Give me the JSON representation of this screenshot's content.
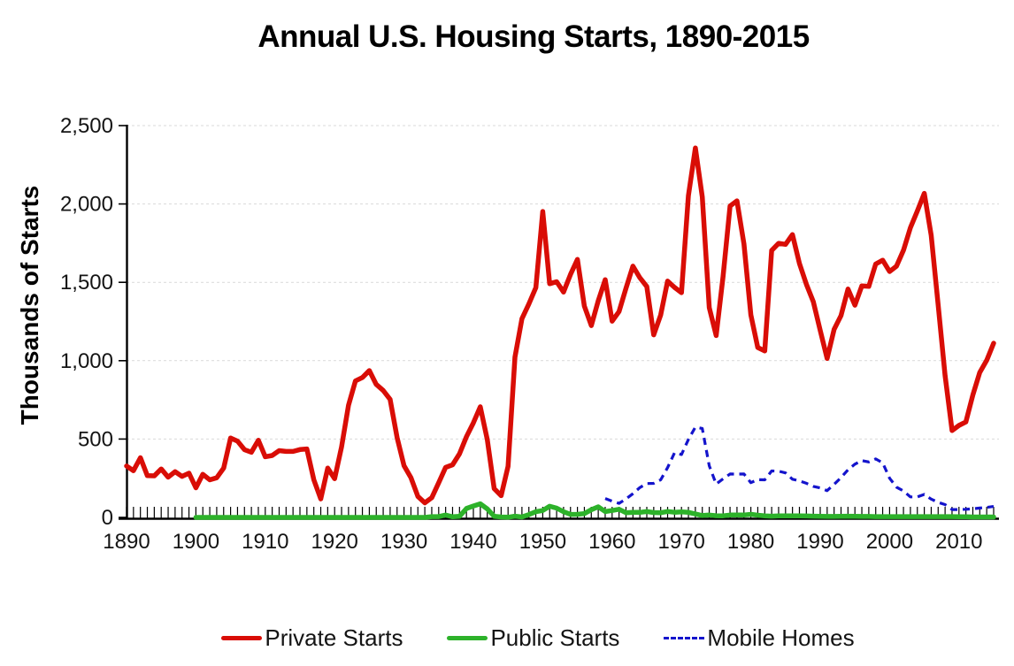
{
  "title": "Annual U.S. Housing Starts, 1890-2015",
  "y_axis": {
    "label": "Thousands of Starts",
    "tick_labels": [
      "0",
      "500",
      "1,000",
      "1,500",
      "2,000",
      "2,500"
    ],
    "tick_values": [
      0,
      500,
      1000,
      1500,
      2000,
      2500
    ]
  },
  "x_axis": {
    "tick_labels": [
      "1890",
      "1900",
      "1910",
      "1920",
      "1930",
      "1940",
      "1950",
      "1960",
      "1970",
      "1980",
      "1990",
      "2000",
      "2010"
    ],
    "tick_values": [
      1890,
      1900,
      1910,
      1920,
      1930,
      1940,
      1950,
      1960,
      1970,
      1980,
      1990,
      2000,
      2010
    ]
  },
  "colors": {
    "private": "#d90d06",
    "public": "#2db22a",
    "mobile": "#1414cc",
    "gridline": "#d9d9d9",
    "axis": "#000000"
  },
  "chart_data": {
    "type": "line",
    "title": "Annual U.S. Housing Starts, 1890-2015",
    "xlabel": "",
    "ylabel": "Thousands of Starts",
    "x_start": 1890,
    "x_end": 2015,
    "ylim": [
      0,
      2500
    ],
    "grid": "horizontal-dashed",
    "legend_position": "bottom",
    "series": [
      {
        "name": "Private Starts",
        "color": "#d90d06",
        "dashed": false,
        "first_year": 1890,
        "values": [
          328,
          298,
          381,
          267,
          265,
          309,
          257,
          292,
          262,
          282,
          189,
          275,
          240,
          253,
          315,
          507,
          487,
          432,
          416,
          492,
          387,
          395,
          426,
          421,
          421,
          433,
          437,
          240,
          118,
          315,
          247,
          449,
          716,
          871,
          893,
          937,
          849,
          810,
          753,
          509,
          330,
          254,
          134,
          93,
          126,
          221,
          319,
          336,
          406,
          515,
          603,
          706,
          497,
          184,
          139,
          326,
          1023,
          1268,
          1362,
          1466,
          1952,
          1491,
          1504,
          1438,
          1551,
          1646,
          1349,
          1224,
          1382,
          1517,
          1252,
          1313,
          1463,
          1603,
          1529,
          1473,
          1165,
          1292,
          1508,
          1467,
          1434,
          2052,
          2357,
          2045,
          1338,
          1160,
          1538,
          1987,
          2020,
          1745,
          1292,
          1084,
          1062,
          1703,
          1749,
          1742,
          1805,
          1620,
          1488,
          1376,
          1193,
          1014,
          1200,
          1288,
          1457,
          1354,
          1477,
          1474,
          1617,
          1641,
          1569,
          1603,
          1705,
          1848,
          1956,
          2068,
          1801,
          1355,
          906,
          554,
          587,
          609,
          781,
          925,
          1003,
          1112
        ]
      },
      {
        "name": "Public Starts",
        "color": "#2db22a",
        "dashed": false,
        "first_year": 1900,
        "values": [
          null,
          null,
          null,
          null,
          null,
          null,
          null,
          null,
          null,
          null,
          0,
          0,
          0,
          0,
          0,
          0,
          0,
          0,
          0,
          0,
          0,
          0,
          0,
          0,
          0,
          0,
          0,
          0,
          0,
          0,
          0,
          0,
          0,
          0,
          0,
          0,
          0,
          0,
          0,
          0,
          0,
          0,
          0,
          0,
          5,
          5,
          15,
          4,
          7,
          57,
          73,
          87,
          54,
          7,
          3,
          1,
          8,
          3,
          18,
          36,
          44,
          71,
          59,
          36,
          19,
          20,
          24,
          49,
          68,
          37,
          44,
          52,
          30,
          32,
          32,
          37,
          31,
          30,
          38,
          33,
          35,
          32,
          22,
          12,
          15,
          11,
          10,
          15,
          16,
          15,
          20,
          14,
          10,
          8,
          10,
          10,
          10,
          10,
          9,
          8,
          7,
          6,
          6,
          7,
          8,
          7,
          6,
          6,
          5,
          5,
          5,
          5,
          5,
          5,
          5,
          5,
          5,
          5,
          5,
          5,
          4,
          4,
          3,
          3,
          3,
          3
        ]
      },
      {
        "name": "Mobile Homes",
        "color": "#1414cc",
        "dashed": true,
        "first_year": 1959,
        "values": [
          null,
          null,
          null,
          null,
          null,
          null,
          null,
          null,
          null,
          null,
          null,
          null,
          null,
          null,
          null,
          null,
          null,
          null,
          null,
          null,
          null,
          null,
          null,
          null,
          null,
          null,
          null,
          null,
          null,
          null,
          null,
          null,
          null,
          null,
          null,
          null,
          null,
          null,
          null,
          null,
          null,
          null,
          null,
          null,
          null,
          null,
          null,
          null,
          null,
          null,
          null,
          null,
          null,
          null,
          null,
          null,
          null,
          null,
          null,
          null,
          null,
          null,
          null,
          null,
          null,
          null,
          null,
          null,
          null,
          121,
          104,
          90,
          118,
          151,
          191,
          216,
          217,
          240,
          318,
          413,
          401,
          497,
          576,
          567,
          329,
          213,
          246,
          277,
          276,
          277,
          222,
          241,
          240,
          296,
          295,
          284,
          244,
          233,
          218,
          198,
          188,
          171,
          211,
          254,
          304,
          340,
          363,
          354,
          373,
          348,
          250,
          193,
          169,
          131,
          131,
          147,
          117,
          96,
          82,
          50,
          50,
          52,
          55,
          60,
          64,
          70
        ]
      }
    ]
  },
  "legend": {
    "items": [
      {
        "label": "Private Starts"
      },
      {
        "label": "Public Starts"
      },
      {
        "label": "Mobile Homes"
      }
    ]
  }
}
